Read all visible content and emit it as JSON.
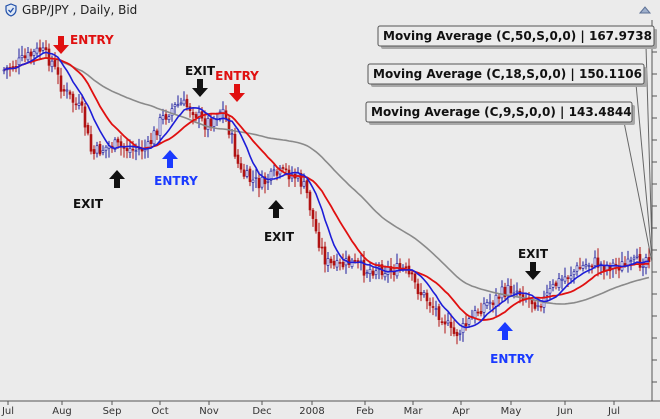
{
  "window": {
    "title": "GBP/JPY , Daily, Bid"
  },
  "colors": {
    "background": "#ebebeb",
    "candle_up": "#1b1b9e",
    "candle_down": "#b01212",
    "ma_9": "#1d1dd8",
    "ma_18": "#e01010",
    "ma_50": "#8a8a8a",
    "entry_red": "#e01010",
    "entry_blue": "#1a3aff",
    "exit_black": "#111111"
  },
  "chart_data": {
    "type": "line",
    "title": "GBP/JPY , Daily, Bid",
    "x_ticks": [
      "Jul",
      "Aug",
      "Sep",
      "Oct",
      "Nov",
      "Dec",
      "2008",
      "Feb",
      "Mar",
      "Apr",
      "May",
      "Jun",
      "Jul"
    ],
    "x": [
      "Jul",
      "Aug",
      "Sep",
      "Oct",
      "Nov",
      "Dec",
      "2008",
      "Feb",
      "Mar",
      "Apr",
      "May",
      "Jun",
      "Jul"
    ],
    "grid": false,
    "series": [
      {
        "name": "Moving Average (C,9,S,0,0)",
        "color_key": "ma_9",
        "last_value": "143.4844"
      },
      {
        "name": "Moving Average (C,18,S,0,0)",
        "color_key": "ma_18",
        "last_value": "150.1106"
      },
      {
        "name": "Moving Average (C,50,S,0,0)",
        "color_key": "ma_50",
        "last_value": "167.9738"
      }
    ],
    "ma_labels": [
      {
        "text": "Moving Average (C,50,S,0,0) | 167.9738"
      },
      {
        "text": "Moving Average (C,18,S,0,0) | 150.1106"
      },
      {
        "text": "Moving Average (C,9,S,0,0) | 143.4844"
      }
    ],
    "annotations": [
      {
        "text": "ENTRY",
        "arrow": "down",
        "color_key": "entry_red",
        "near": "Aug"
      },
      {
        "text": "EXIT",
        "arrow": "up",
        "color_key": "exit_black",
        "near": "Aug"
      },
      {
        "text": "ENTRY",
        "arrow": "up",
        "color_key": "entry_blue",
        "near": "Sep"
      },
      {
        "text": "EXIT",
        "arrow": "down",
        "color_key": "exit_black",
        "near": "Oct"
      },
      {
        "text": "ENTRY",
        "arrow": "down",
        "color_key": "entry_red",
        "near": "Nov"
      },
      {
        "text": "EXIT",
        "arrow": "up",
        "color_key": "exit_black",
        "near": "Dec"
      },
      {
        "text": "EXIT",
        "arrow": "down",
        "color_key": "exit_black",
        "near": "May"
      },
      {
        "text": "ENTRY",
        "arrow": "up",
        "color_key": "entry_blue",
        "near": "Apr"
      }
    ]
  }
}
